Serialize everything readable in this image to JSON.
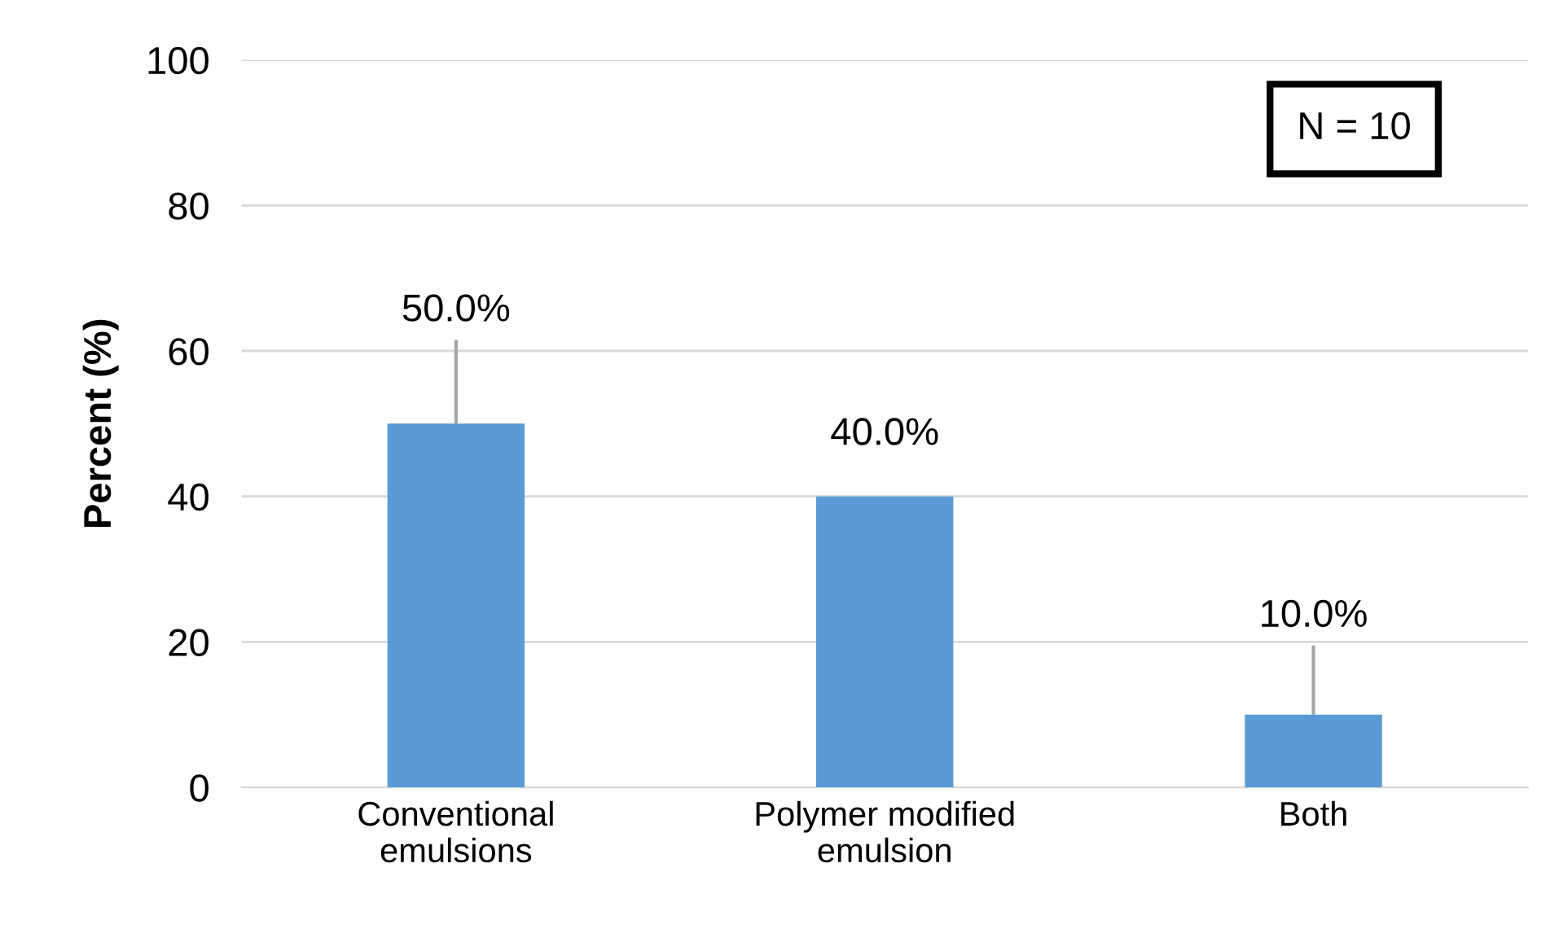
{
  "chart_data": {
    "type": "bar",
    "ylabel": "Percent (%)",
    "categories": [
      "Conventional\nemulsions",
      "Polymer modified\nemulsion",
      "Both"
    ],
    "values": [
      50.0,
      40.0,
      10.0
    ],
    "errors": [
      [
        50.0,
        61.5
      ],
      null,
      [
        10.0,
        19.5
      ]
    ],
    "value_labels": [
      "50.0%",
      "40.0%",
      "10.0%"
    ],
    "color": "#5b9bd5",
    "ylim": [
      0,
      100
    ],
    "yticks": [
      0,
      20,
      40,
      60,
      80,
      100
    ],
    "grid": "y",
    "annotations": [
      "N = 10"
    ]
  }
}
